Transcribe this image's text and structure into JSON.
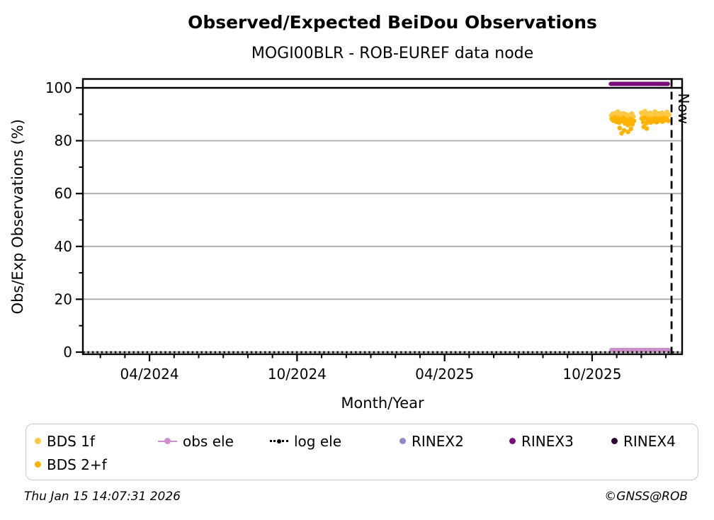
{
  "title": "Observed/Expected BeiDou Observations",
  "subtitle": "MOGI00BLR - ROB-EUREF data node",
  "footer": {
    "timestamp": "Thu Jan 15 14:07:31 2026",
    "copyright": "©GNSS@ROB"
  },
  "colors": {
    "bds_1f": "#FFC845",
    "bds_2f": "#FFB300",
    "obs_ele": "#CC8FCC",
    "log_ele": "#000000",
    "rinex2": "#9287C8",
    "rinex3": "#7B0D7B",
    "rinex4": "#2D0A33",
    "grid": "#A9A9A9",
    "axis": "#000000",
    "hundred_line": "#000000"
  },
  "legend": {
    "items": [
      {
        "label": "BDS 1f",
        "marker": "dot",
        "color": "#FFC845",
        "row": 1
      },
      {
        "label": "obs ele",
        "marker": "line-dot",
        "color": "#CC8FCC",
        "row": 1
      },
      {
        "label": "log ele",
        "marker": "dotted-line",
        "color": "#000000",
        "row": 1
      },
      {
        "label": "RINEX2",
        "marker": "dot",
        "color": "#9287C8",
        "row": 1
      },
      {
        "label": "RINEX3",
        "marker": "dot",
        "color": "#7B0D7B",
        "row": 1
      },
      {
        "label": "RINEX4",
        "marker": "dot",
        "color": "#2D0A33",
        "row": 1
      },
      {
        "label": "BDS 2+f",
        "marker": "dot",
        "color": "#FFB300",
        "row": 2
      }
    ]
  },
  "chart_data": {
    "type": "scatter",
    "title": "Observed/Expected BeiDou Observations",
    "xlabel": "Month/Year",
    "ylabel": "Obs/Exp Observations (%)",
    "x_unit": "months_since_2024_01_01",
    "xlim": [
      0.29,
      24.66
    ],
    "ylim": [
      -0.8,
      103.35
    ],
    "grid": "horizontal_gray_at_major_y",
    "x_major_ticks": [
      {
        "m": 3,
        "label": "04/2024"
      },
      {
        "m": 9,
        "label": "10/2024"
      },
      {
        "m": 15,
        "label": "04/2025"
      },
      {
        "m": 21,
        "label": "10/2025"
      }
    ],
    "x_minor_tick_months": [
      1,
      2,
      4,
      5,
      6,
      7,
      8,
      10,
      11,
      12,
      13,
      14,
      16,
      17,
      18,
      19,
      20,
      22,
      23,
      24
    ],
    "y_major_ticks": [
      0,
      20,
      40,
      60,
      80,
      100
    ],
    "y_minor_ticks": [
      10,
      30,
      50,
      70,
      90
    ],
    "reference_line_100": {
      "y": 100
    },
    "now_line": {
      "m": 24.23,
      "label": "Now"
    },
    "legend_position": "below",
    "series": [
      {
        "name": "RINEX3",
        "type": "thick_line",
        "color": "#7B0D7B",
        "y": 101.5,
        "x_range": [
          21.76,
          24.08
        ]
      },
      {
        "name": "obs ele",
        "type": "thick_line",
        "color": "#CC8FCC",
        "y": 0.8,
        "x_range": [
          21.78,
          24.12
        ]
      },
      {
        "name": "log ele",
        "type": "dotted_line",
        "color": "#000000",
        "y": 0.0,
        "x_range": [
          0.29,
          24.66
        ]
      },
      {
        "name": "RINEX2",
        "type": "scatter",
        "color": "#9287C8",
        "points": []
      },
      {
        "name": "RINEX4",
        "type": "scatter",
        "color": "#2D0A33",
        "points": []
      },
      {
        "name": "BDS 1f",
        "type": "scatter",
        "color": "#FFC845",
        "points": [
          [
            21.78,
            89.5
          ],
          [
            21.84,
            90.2
          ],
          [
            21.9,
            89.0
          ],
          [
            21.96,
            90.5
          ],
          [
            22.02,
            89.8
          ],
          [
            22.05,
            91.0
          ],
          [
            22.08,
            88.6
          ],
          [
            22.14,
            90.1
          ],
          [
            22.2,
            89.3
          ],
          [
            22.26,
            90.4
          ],
          [
            22.32,
            89.0
          ],
          [
            22.38,
            90.0
          ],
          [
            22.44,
            89.5
          ],
          [
            22.5,
            88.8
          ],
          [
            22.56,
            89.9
          ],
          [
            22.62,
            90.3
          ],
          [
            22.68,
            89.2
          ],
          [
            23.0,
            90.6
          ],
          [
            23.06,
            89.7
          ],
          [
            23.12,
            90.9
          ],
          [
            23.15,
            91.2
          ],
          [
            23.18,
            89.4
          ],
          [
            23.24,
            90.2
          ],
          [
            23.3,
            89.0
          ],
          [
            23.36,
            90.5
          ],
          [
            23.42,
            89.8
          ],
          [
            23.48,
            90.1
          ],
          [
            23.54,
            89.3
          ],
          [
            23.55,
            91.0
          ],
          [
            23.6,
            90.7
          ],
          [
            23.66,
            89.9
          ],
          [
            23.72,
            90.3
          ],
          [
            23.78,
            89.1
          ],
          [
            23.84,
            90.6
          ],
          [
            23.9,
            89.6
          ],
          [
            23.96,
            90.2
          ],
          [
            24.02,
            89.4
          ],
          [
            24.05,
            90.9
          ],
          [
            24.08,
            90.0
          ],
          [
            24.14,
            89.8
          ]
        ]
      },
      {
        "name": "BDS 2+f",
        "type": "scatter",
        "color": "#FFB300",
        "points": [
          [
            21.8,
            88.3
          ],
          [
            21.86,
            87.6
          ],
          [
            21.92,
            88.8
          ],
          [
            21.98,
            87.2
          ],
          [
            22.04,
            88.5
          ],
          [
            22.1,
            86.8
          ],
          [
            22.12,
            84.8
          ],
          [
            22.16,
            88.0
          ],
          [
            22.2,
            82.8
          ],
          [
            22.22,
            87.4
          ],
          [
            22.28,
            88.6
          ],
          [
            22.3,
            83.9
          ],
          [
            22.34,
            86.5
          ],
          [
            22.4,
            87.8
          ],
          [
            22.46,
            85.9
          ],
          [
            22.46,
            83.3
          ],
          [
            22.52,
            87.1
          ],
          [
            22.58,
            88.2
          ],
          [
            22.58,
            84.5
          ],
          [
            22.64,
            86.2
          ],
          [
            22.7,
            87.5
          ],
          [
            23.02,
            88.4
          ],
          [
            23.08,
            87.0
          ],
          [
            23.1,
            85.2
          ],
          [
            23.14,
            88.7
          ],
          [
            23.2,
            86.6
          ],
          [
            23.22,
            84.6
          ],
          [
            23.26,
            87.9
          ],
          [
            23.32,
            88.3
          ],
          [
            23.38,
            86.9
          ],
          [
            23.44,
            88.0
          ],
          [
            23.5,
            87.3
          ],
          [
            23.56,
            88.5
          ],
          [
            23.62,
            87.0
          ],
          [
            23.68,
            88.2
          ],
          [
            23.74,
            87.6
          ],
          [
            23.8,
            88.4
          ],
          [
            23.86,
            87.2
          ],
          [
            23.92,
            88.6
          ],
          [
            23.98,
            87.8
          ],
          [
            24.04,
            88.3
          ],
          [
            24.1,
            87.5
          ]
        ]
      }
    ]
  }
}
